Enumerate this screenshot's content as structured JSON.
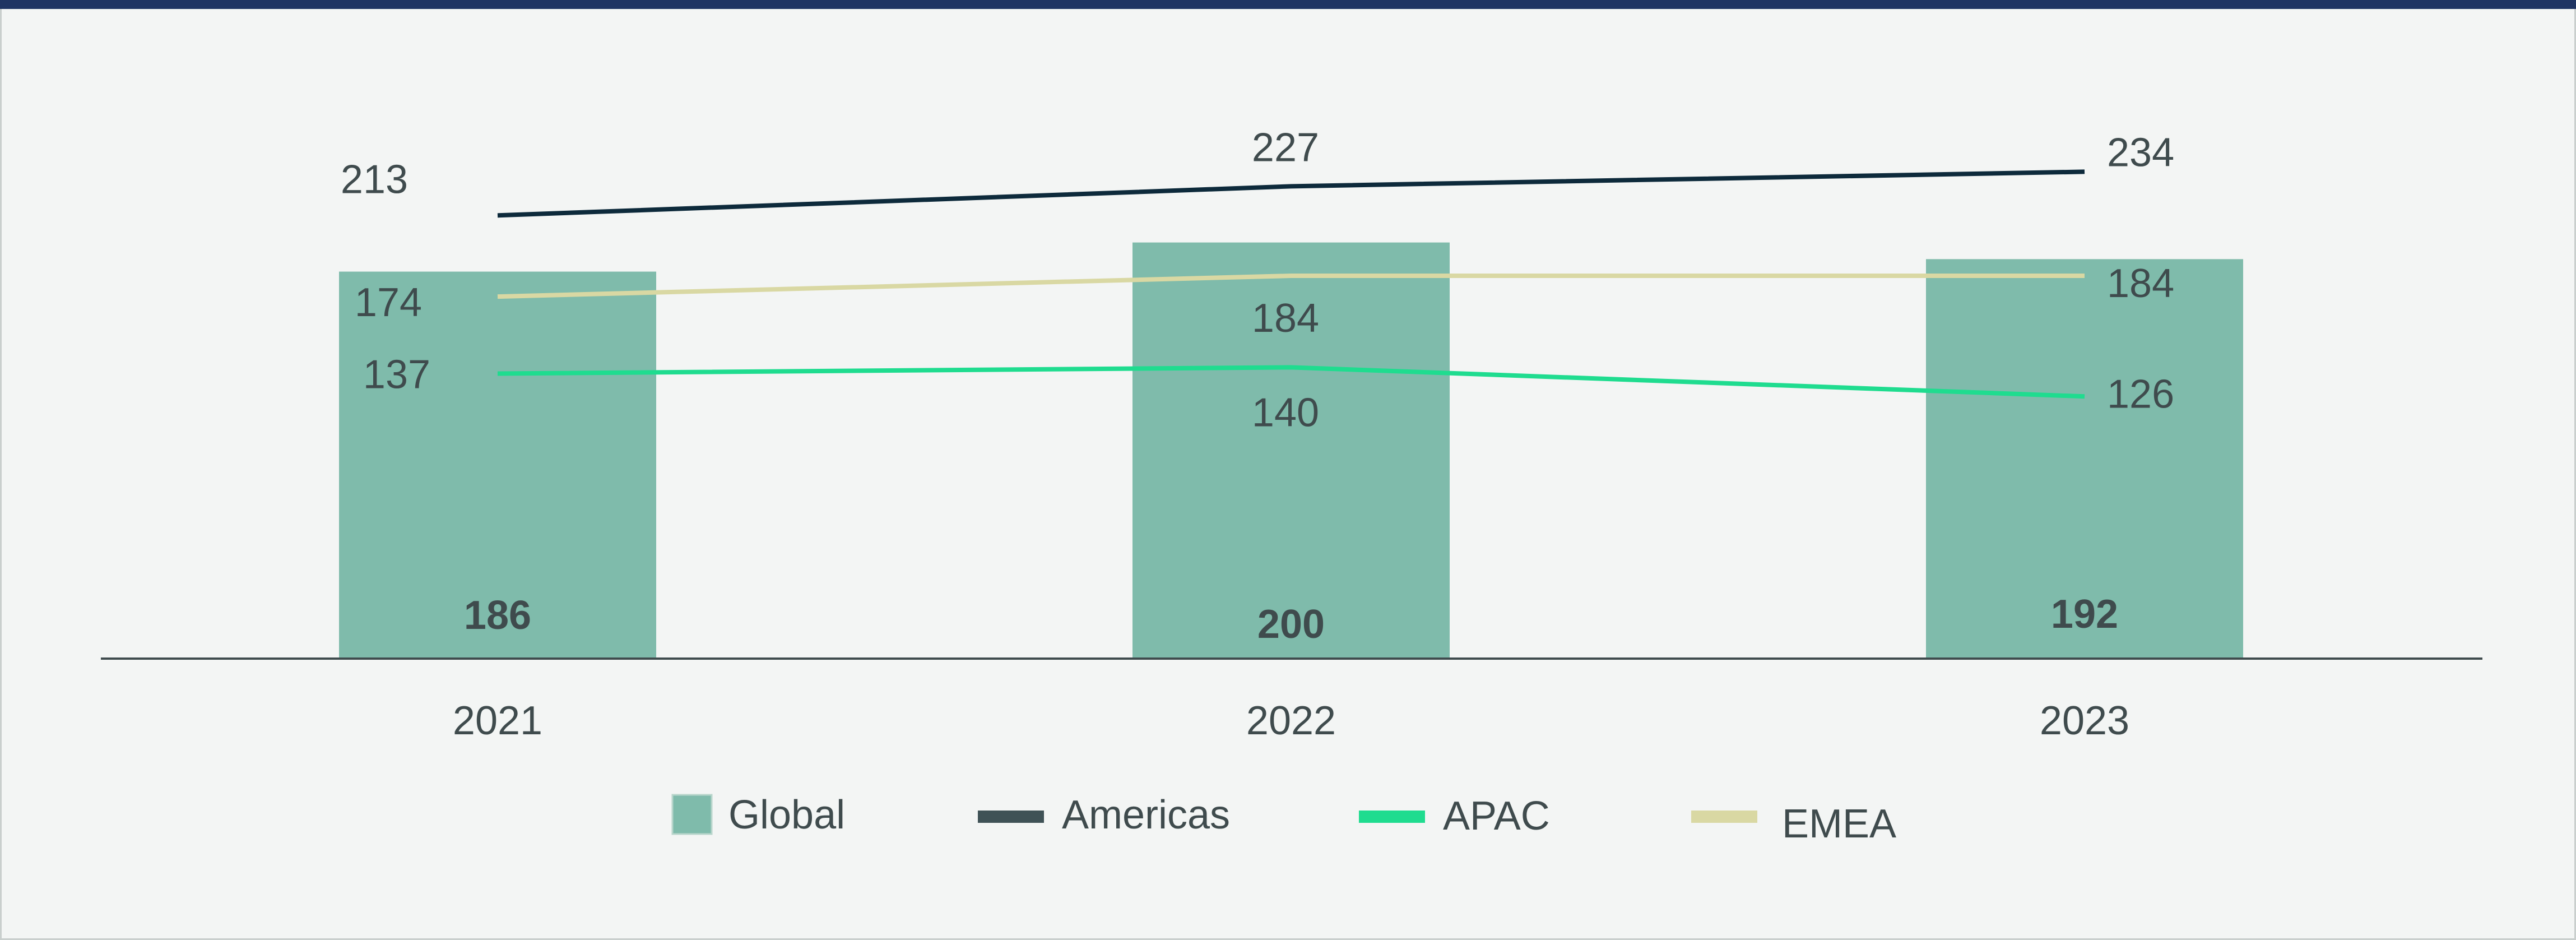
{
  "chart_data": {
    "type": "bar",
    "categories": [
      "2021",
      "2022",
      "2023"
    ],
    "ylim": [
      0,
      240
    ],
    "bar_series": {
      "name": "Global",
      "values": [
        186,
        200,
        192
      ],
      "labels": [
        "186",
        "200",
        "192"
      ],
      "color": "#7fbbab"
    },
    "line_series": [
      {
        "name": "Americas",
        "values": [
          213,
          227,
          234
        ],
        "labels": [
          "213",
          "227",
          "234"
        ],
        "color": "#0d2a3b",
        "legend_color": "#3f5256"
      },
      {
        "name": "APAC",
        "values": [
          137,
          140,
          126
        ],
        "labels": [
          "137",
          "140",
          "126"
        ],
        "color": "#1fdc8f",
        "legend_color": "#1fdc8f"
      },
      {
        "name": "EMEA",
        "values": [
          174,
          184,
          184
        ],
        "labels": [
          "174",
          "184",
          "184"
        ],
        "color": "#d9d8a3",
        "legend_color": "#d9d8a3"
      }
    ],
    "legend": [
      "Global",
      "Americas",
      "APAC",
      "EMEA"
    ],
    "legend_position": "bottom",
    "grid": false
  }
}
